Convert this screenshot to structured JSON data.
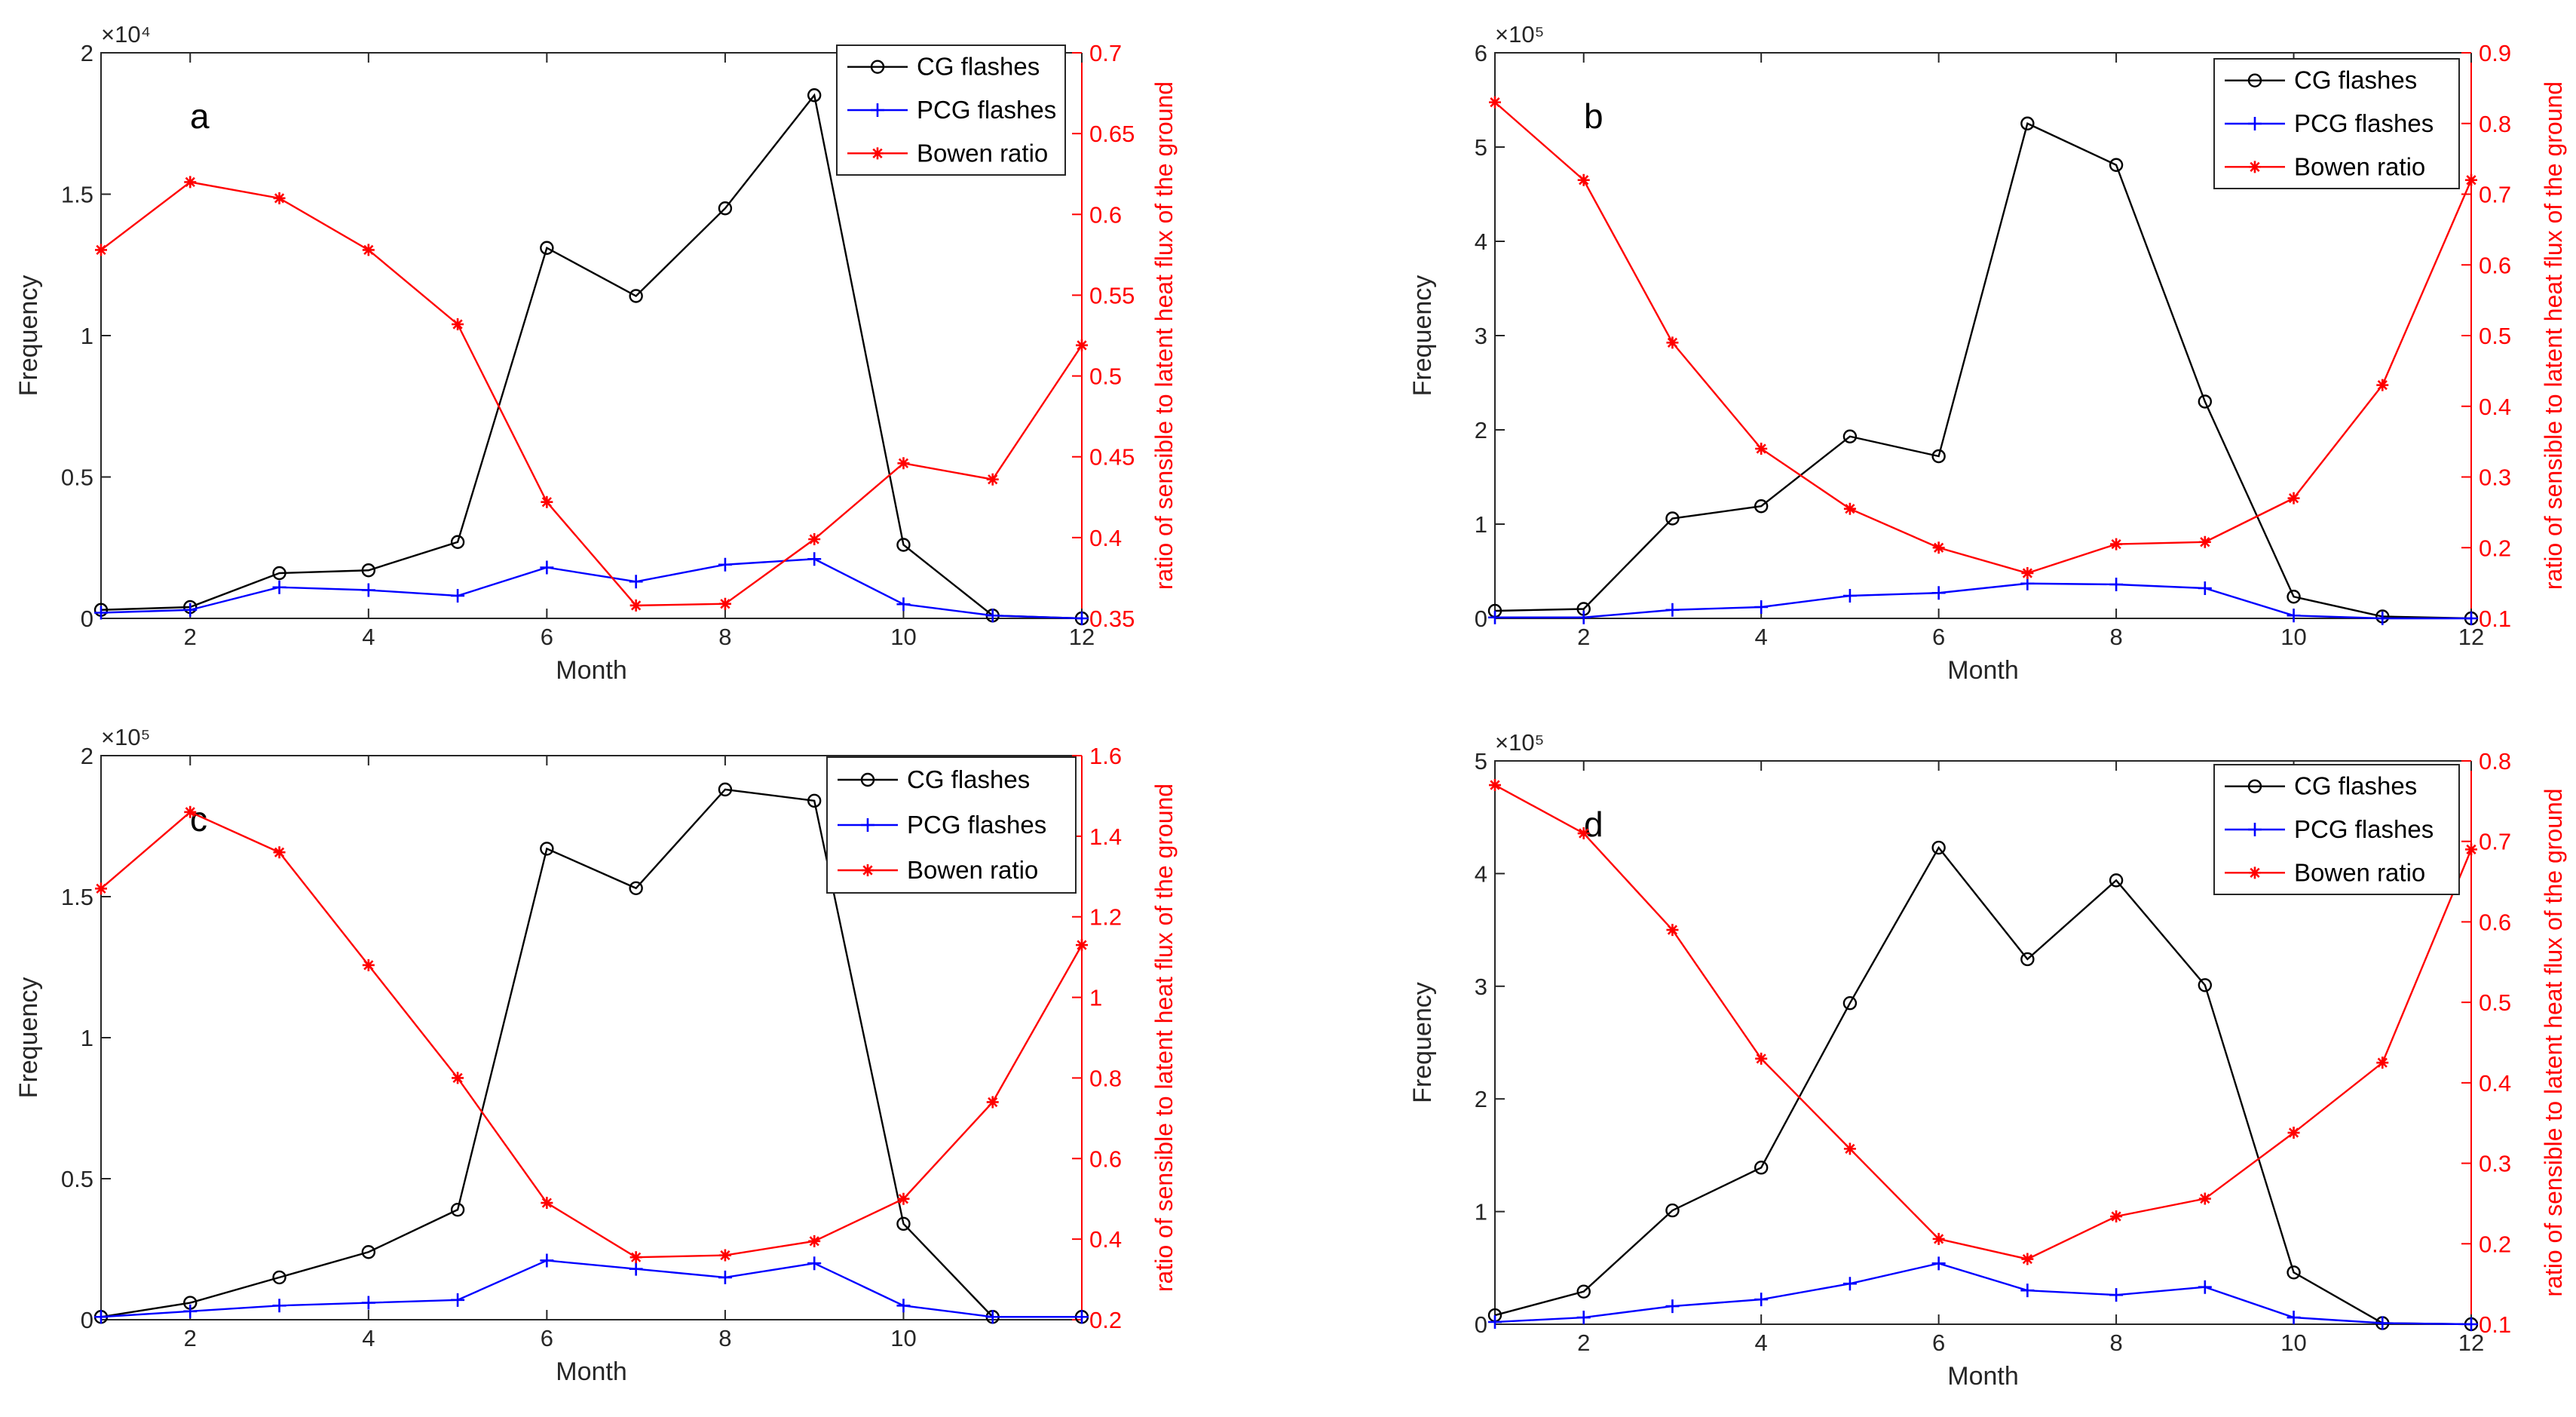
{
  "figure": {
    "legend_labels": [
      "CG flashes",
      "PCG flashes",
      "Bowen ratio"
    ],
    "colors": {
      "cg": "#000000",
      "pcg": "#0000ff",
      "bowen": "#ff0000",
      "axis": "#262626"
    }
  },
  "chart_data": [
    {
      "type": "line",
      "panel_label": "a",
      "xlabel": "Month",
      "ylabel": "Frequency",
      "y2label": "ratio of sensible to latent heat flux of the ground",
      "exponent_label": "×10⁴",
      "xlim": [
        1,
        12
      ],
      "xticks": [
        2,
        4,
        6,
        8,
        10,
        12
      ],
      "xtick_labels": [
        "2",
        "4",
        "6",
        "8",
        "10",
        "12"
      ],
      "ylim": [
        0,
        2
      ],
      "yticks": [
        0,
        0.5,
        1,
        1.5,
        2
      ],
      "ytick_labels": [
        "0",
        "0.5",
        "1",
        "1.5",
        "2"
      ],
      "y2lim": [
        0.35,
        0.7
      ],
      "y2ticks": [
        0.35,
        0.4,
        0.45,
        0.5,
        0.55,
        0.6,
        0.65,
        0.7
      ],
      "y2tick_labels": [
        "0.35",
        "0.4",
        "0.45",
        "0.5",
        "0.55",
        "0.6",
        "0.65",
        "0.7"
      ],
      "x": [
        1,
        2,
        3,
        4,
        5,
        6,
        7,
        8,
        9,
        10,
        11,
        12
      ],
      "series": [
        {
          "name": "CG flashes",
          "axis": "left",
          "marker": "circle",
          "values": [
            0.03,
            0.04,
            0.16,
            0.17,
            0.27,
            1.31,
            1.14,
            1.45,
            1.85,
            0.26,
            0.01,
            0.0
          ]
        },
        {
          "name": "PCG flashes",
          "axis": "left",
          "marker": "plus",
          "values": [
            0.02,
            0.03,
            0.11,
            0.1,
            0.08,
            0.18,
            0.13,
            0.19,
            0.21,
            0.05,
            0.01,
            0.0
          ]
        },
        {
          "name": "Bowen ratio",
          "axis": "right",
          "marker": "star",
          "values": [
            0.578,
            0.62,
            0.61,
            0.578,
            0.532,
            0.422,
            0.358,
            0.359,
            0.399,
            0.446,
            0.436,
            0.519
          ]
        }
      ]
    },
    {
      "type": "line",
      "panel_label": "b",
      "xlabel": "Month",
      "ylabel": "Frequency",
      "y2label": "ratio of sensible to latent heat flux of the ground",
      "exponent_label": "×10⁵",
      "xlim": [
        1,
        12
      ],
      "xticks": [
        2,
        4,
        6,
        8,
        10,
        12
      ],
      "xtick_labels": [
        "2",
        "4",
        "6",
        "8",
        "10",
        "12"
      ],
      "ylim": [
        0,
        6
      ],
      "yticks": [
        0,
        1,
        2,
        3,
        4,
        5,
        6
      ],
      "ytick_labels": [
        "0",
        "1",
        "2",
        "3",
        "4",
        "5",
        "6"
      ],
      "y2lim": [
        0.1,
        0.9
      ],
      "y2ticks": [
        0.1,
        0.2,
        0.3,
        0.4,
        0.5,
        0.6,
        0.7,
        0.8,
        0.9
      ],
      "y2tick_labels": [
        "0.1",
        "0.2",
        "0.3",
        "0.4",
        "0.5",
        "0.6",
        "0.7",
        "0.8",
        "0.9"
      ],
      "x": [
        1,
        2,
        3,
        4,
        5,
        6,
        7,
        8,
        9,
        10,
        11,
        12
      ],
      "series": [
        {
          "name": "CG flashes",
          "axis": "left",
          "marker": "circle",
          "values": [
            0.08,
            0.1,
            1.06,
            1.19,
            1.93,
            1.72,
            5.25,
            4.81,
            2.3,
            0.23,
            0.02,
            0.0
          ]
        },
        {
          "name": "PCG flashes",
          "axis": "left",
          "marker": "plus",
          "values": [
            0.01,
            0.01,
            0.09,
            0.12,
            0.24,
            0.27,
            0.37,
            0.36,
            0.32,
            0.03,
            0.0,
            0.0
          ]
        },
        {
          "name": "Bowen ratio",
          "axis": "right",
          "marker": "star",
          "values": [
            0.83,
            0.72,
            0.49,
            0.34,
            0.255,
            0.2,
            0.164,
            0.205,
            0.208,
            0.27,
            0.43,
            0.72
          ]
        }
      ]
    },
    {
      "type": "line",
      "panel_label": "c",
      "xlabel": "Month",
      "ylabel": "Frequency",
      "y2label": "ratio of sensible to latent heat flux of the ground",
      "exponent_label": "×10⁵",
      "xlim": [
        1,
        12
      ],
      "xticks": [
        2,
        4,
        6,
        8,
        10
      ],
      "xtick_labels": [
        "2",
        "4",
        "6",
        "8",
        "10"
      ],
      "ylim": [
        0,
        2
      ],
      "yticks": [
        0,
        0.5,
        1,
        1.5,
        2
      ],
      "ytick_labels": [
        "0",
        "0.5",
        "1",
        "1.5",
        "2"
      ],
      "y2lim": [
        0.2,
        1.6
      ],
      "y2ticks": [
        0.2,
        0.4,
        0.6,
        0.8,
        1.0,
        1.2,
        1.4,
        1.6
      ],
      "y2tick_labels": [
        "0.2",
        "0.4",
        "0.6",
        "0.8",
        "1",
        "1.2",
        "1.4",
        "1.6"
      ],
      "x": [
        1,
        2,
        3,
        4,
        5,
        6,
        7,
        8,
        9,
        10,
        11,
        12
      ],
      "series": [
        {
          "name": "CG flashes",
          "axis": "left",
          "marker": "circle",
          "values": [
            0.01,
            0.06,
            0.15,
            0.24,
            0.39,
            1.67,
            1.53,
            1.88,
            1.84,
            0.34,
            0.01,
            0.01
          ]
        },
        {
          "name": "PCG flashes",
          "axis": "left",
          "marker": "plus",
          "values": [
            0.01,
            0.03,
            0.05,
            0.06,
            0.07,
            0.21,
            0.18,
            0.15,
            0.2,
            0.05,
            0.01,
            0.01
          ]
        },
        {
          "name": "Bowen ratio",
          "axis": "right",
          "marker": "star",
          "values": [
            1.27,
            1.46,
            1.36,
            1.08,
            0.8,
            0.49,
            0.355,
            0.36,
            0.395,
            0.5,
            0.74,
            1.13
          ]
        }
      ]
    },
    {
      "type": "line",
      "panel_label": "d",
      "xlabel": "Month",
      "ylabel": "Frequency",
      "y2label": "ratio of sensible to latent heat flux of the ground",
      "exponent_label": "×10⁵",
      "xlim": [
        1,
        12
      ],
      "xticks": [
        2,
        4,
        6,
        8,
        10,
        12
      ],
      "xtick_labels": [
        "2",
        "4",
        "6",
        "8",
        "10",
        "12"
      ],
      "ylim": [
        0,
        5
      ],
      "yticks": [
        0,
        1,
        2,
        3,
        4,
        5
      ],
      "ytick_labels": [
        "0",
        "1",
        "2",
        "3",
        "4",
        "5"
      ],
      "y2lim": [
        0.1,
        0.8
      ],
      "y2ticks": [
        0.1,
        0.2,
        0.3,
        0.4,
        0.5,
        0.6,
        0.7,
        0.8
      ],
      "y2tick_labels": [
        "0.1",
        "0.2",
        "0.3",
        "0.4",
        "0.5",
        "0.6",
        "0.7",
        "0.8"
      ],
      "x": [
        1,
        2,
        3,
        4,
        5,
        6,
        7,
        8,
        9,
        10,
        11,
        12
      ],
      "series": [
        {
          "name": "CG flashes",
          "axis": "left",
          "marker": "circle",
          "values": [
            0.08,
            0.29,
            1.01,
            1.39,
            2.85,
            4.23,
            3.24,
            3.94,
            3.01,
            0.46,
            0.01,
            0.0
          ]
        },
        {
          "name": "PCG flashes",
          "axis": "left",
          "marker": "plus",
          "values": [
            0.02,
            0.06,
            0.16,
            0.22,
            0.36,
            0.54,
            0.3,
            0.26,
            0.33,
            0.06,
            0.01,
            0.0
          ]
        },
        {
          "name": "Bowen ratio",
          "axis": "right",
          "marker": "star",
          "values": [
            0.77,
            0.71,
            0.59,
            0.43,
            0.318,
            0.206,
            0.181,
            0.234,
            0.256,
            0.338,
            0.425,
            0.69
          ]
        }
      ]
    }
  ]
}
